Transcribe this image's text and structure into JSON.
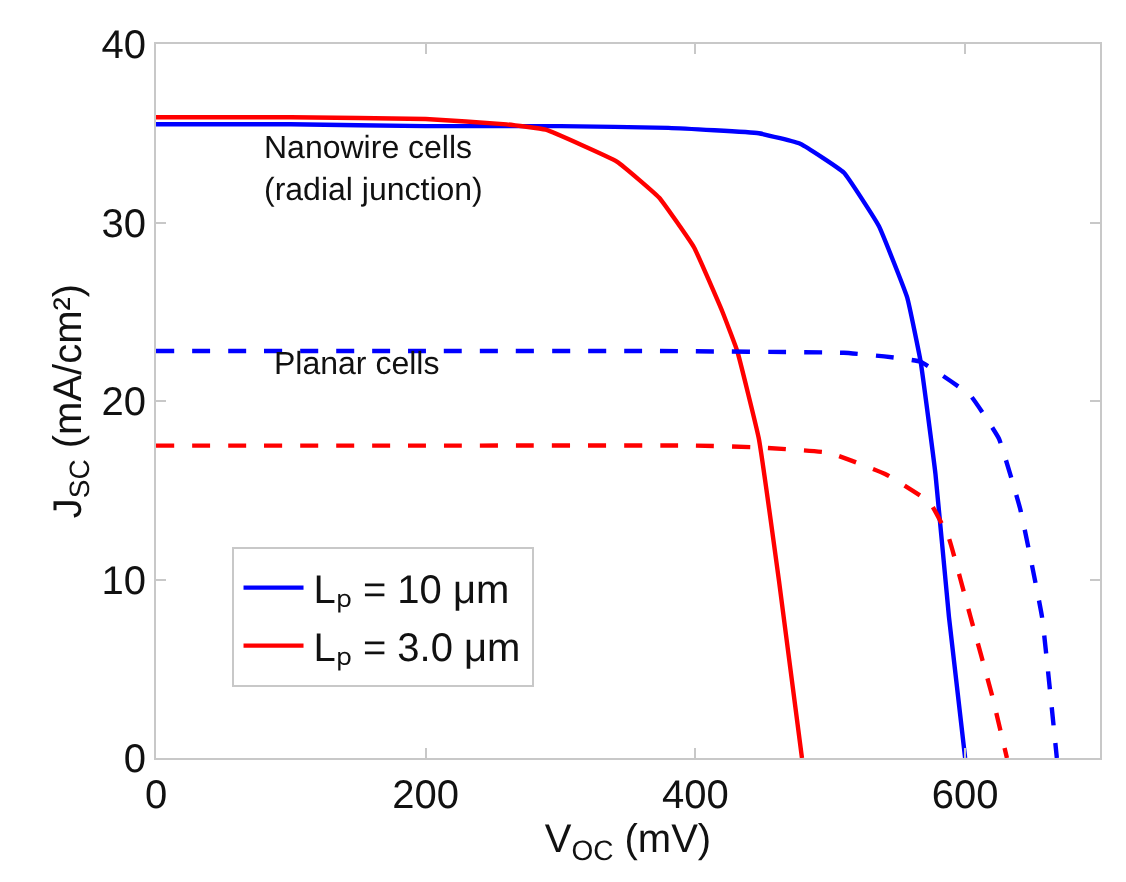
{
  "chart_data": {
    "type": "line",
    "xlabel": "V$_{OC}$ (mV)",
    "ylabel": "J$_{SC}$ (mA/cm²)",
    "xlim": [
      0,
      700
    ],
    "xticks": [
      0,
      200,
      400,
      600
    ],
    "ylim": [
      0,
      40
    ],
    "yticks": [
      0,
      10,
      20,
      30,
      40
    ],
    "legend": "bottom left",
    "annotations": [
      "Nanowire cells\n(radial junction)",
      "Planar cells"
    ],
    "series": [
      {
        "name": "Lₚ = 10 μm",
        "color": "#0000ff",
        "line_style": "solid",
        "x": [
          0,
          100,
          200,
          300,
          380,
          447,
          478,
          510,
          536,
          557,
          567,
          578,
          588,
          600
        ],
        "values": [
          35.5,
          35.5,
          35.4,
          35.4,
          35.3,
          35.0,
          34.4,
          32.8,
          29.8,
          25.8,
          22.2,
          15.9,
          7.9,
          0
        ]
      },
      {
        "name": "Lₚ = 3.0 μm",
        "color": "#ff0000",
        "line_style": "solid",
        "x": [
          0,
          100,
          200,
          260,
          289,
          342,
          373,
          399,
          420,
          431,
          447,
          462,
          479
        ],
        "values": [
          35.9,
          35.9,
          35.8,
          35.5,
          35.2,
          33.4,
          31.4,
          28.6,
          25.0,
          22.8,
          17.9,
          9.9,
          0
        ]
      },
      {
        "color": "#0000ff",
        "line_style": "dashed",
        "x": [
          0,
          200,
          370,
          510,
          540,
          567,
          604,
          625,
          641,
          657,
          668
        ],
        "values": [
          22.8,
          22.8,
          22.8,
          22.7,
          22.5,
          22.2,
          20.3,
          17.9,
          13.9,
          7.9,
          0
        ]
      },
      {
        "color": "#ff0000",
        "line_style": "dashed",
        "x": [
          0,
          200,
          400,
          447,
          499,
          541,
          574,
          588,
          604,
          620,
          631
        ],
        "values": [
          17.5,
          17.5,
          17.5,
          17.4,
          17.1,
          15.9,
          14.3,
          12.3,
          7.9,
          3.5,
          0
        ]
      }
    ]
  }
}
